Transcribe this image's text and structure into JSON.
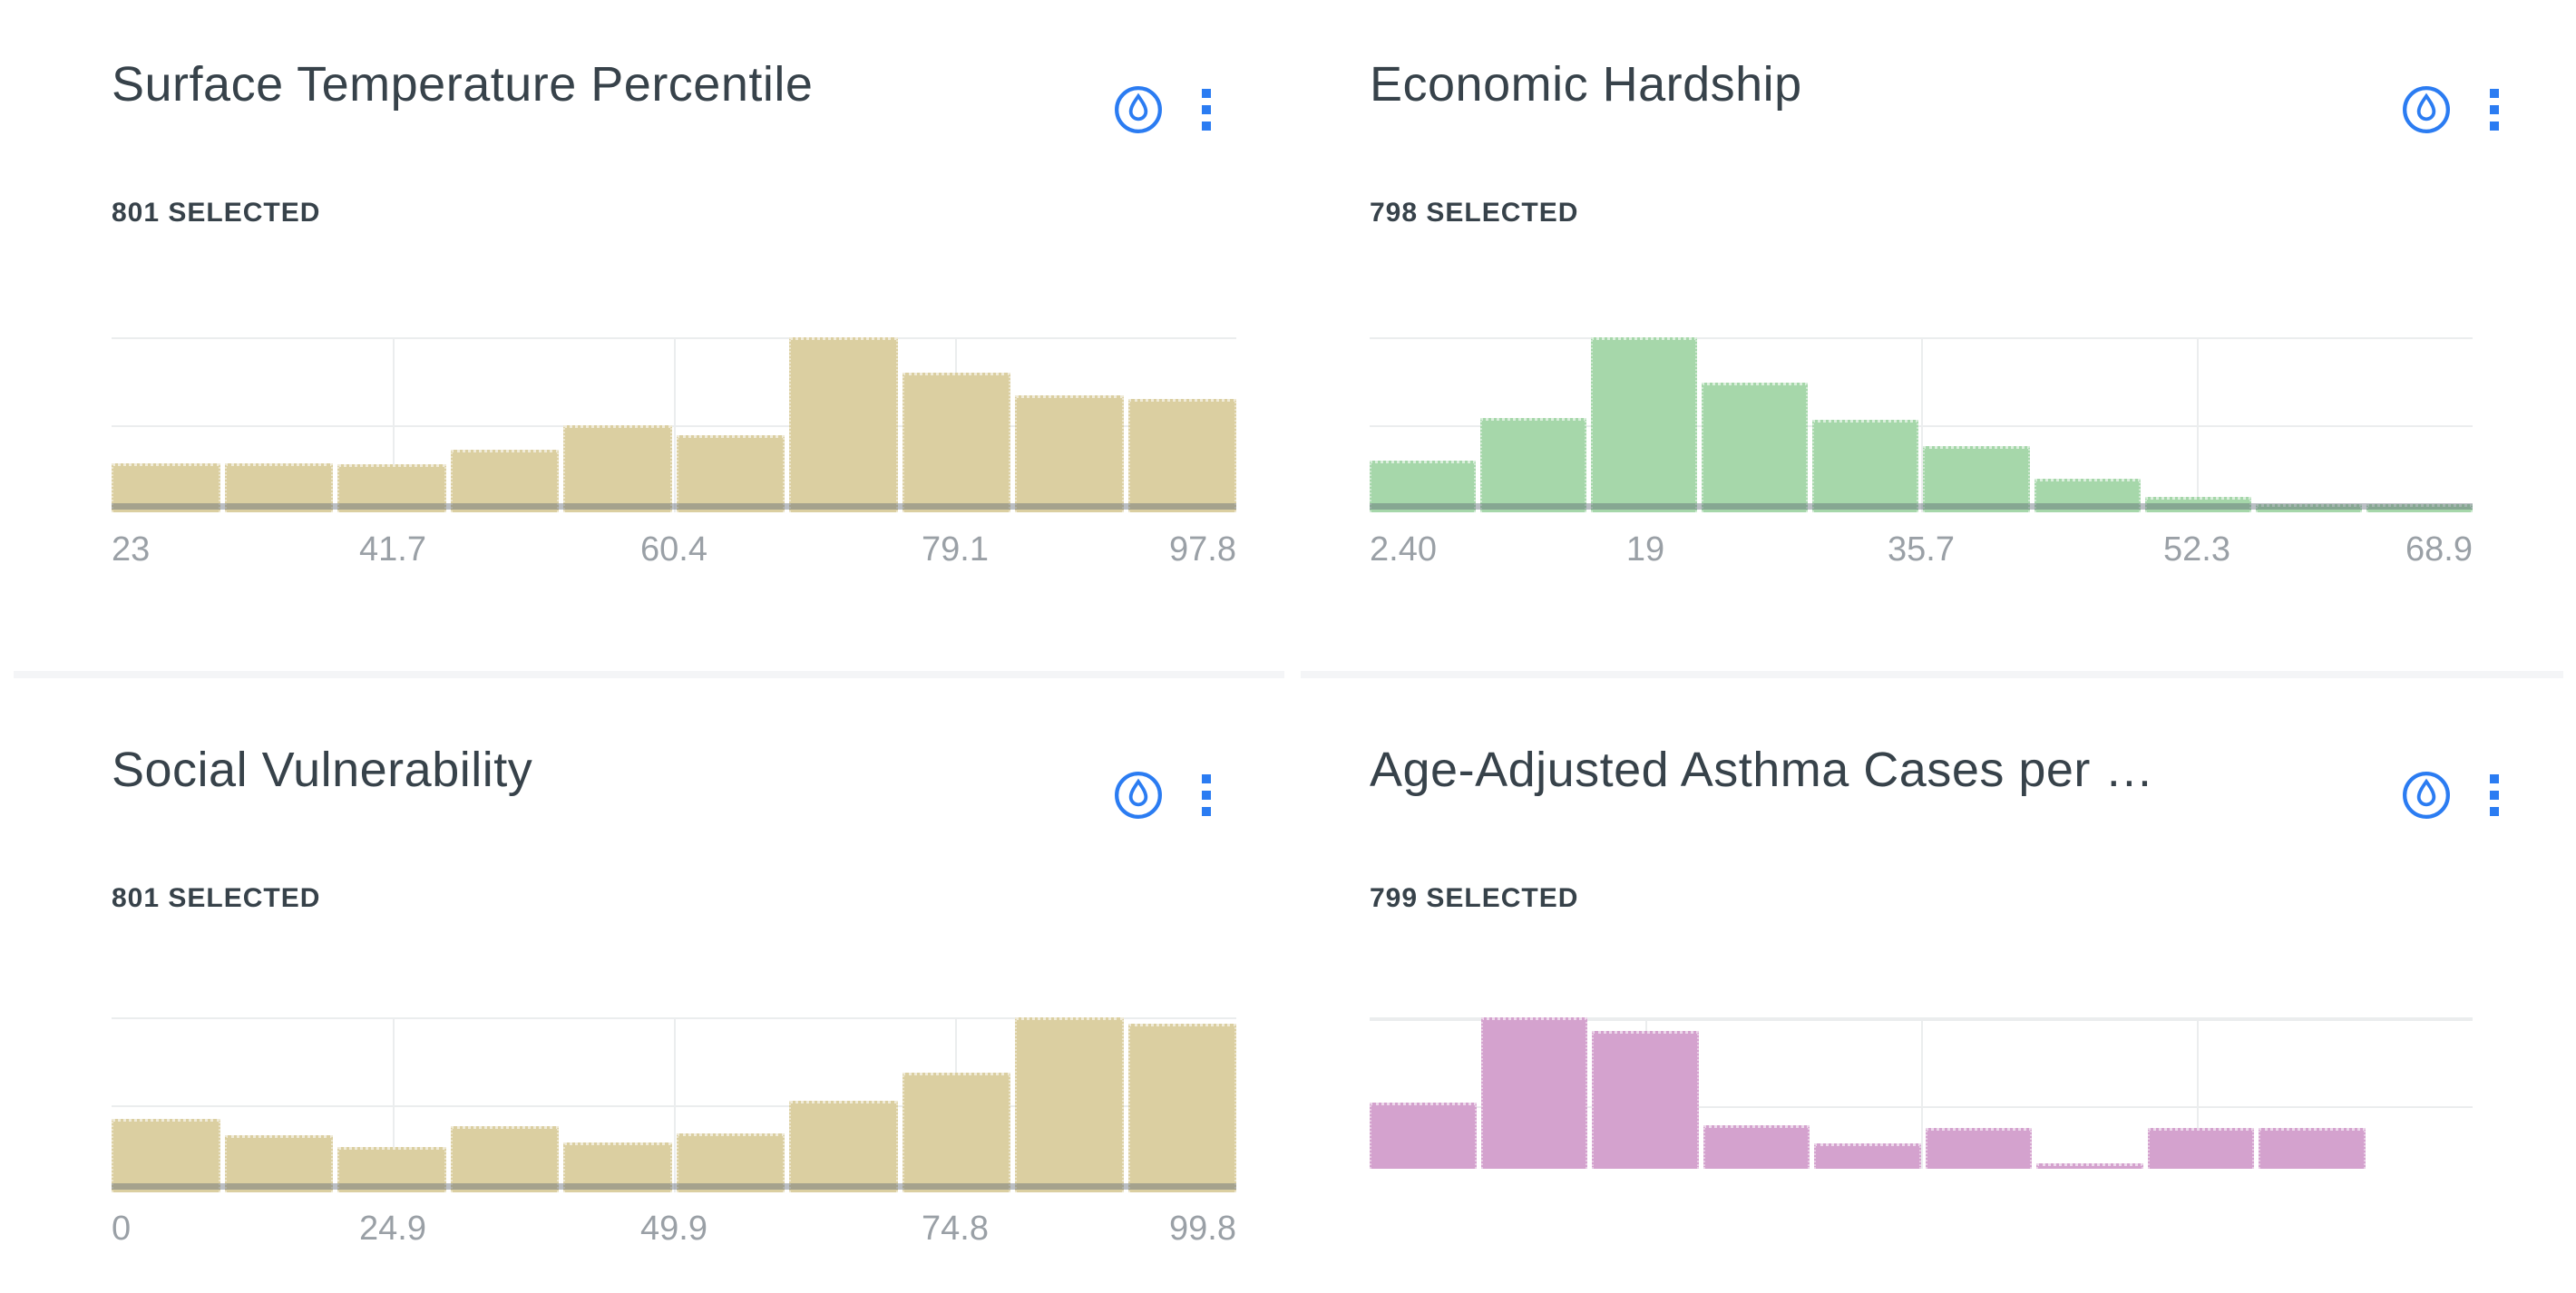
{
  "colors": {
    "background": "#ffffff",
    "accent_blue": "#2b7cf2",
    "title_text": "#37424a",
    "count_text": "#37424a",
    "axis_label_text": "#9aa0a6",
    "gridline": "#ebedee",
    "row_divider": "#f4f5f7",
    "baseline_overlay": "rgba(90,100,115,0.42)",
    "bar_tan": "#dbcfa1",
    "bar_green": "#a6d7aa",
    "bar_pink": "#d4a2ce"
  },
  "icons": {
    "droplet": "droplet-in-circle-outline",
    "kebab": "vertical-ellipsis-square-dots"
  },
  "panels": [
    {
      "id": "p1",
      "title": "Surface Temperature Percentile",
      "selected_text": "801 SELECTED",
      "selected_count": 801
    },
    {
      "id": "p2",
      "title": "Economic Hardship",
      "selected_text": "798 SELECTED",
      "selected_count": 798
    },
    {
      "id": "p3",
      "title": "Social Vulnerability",
      "selected_text": "801 SELECTED",
      "selected_count": 801
    },
    {
      "id": "p4",
      "title": "Age-Adjusted Asthma Cases per …",
      "selected_text": "799 SELECTED",
      "selected_count": 799
    }
  ],
  "chart_data": [
    {
      "type": "bar",
      "subtype": "histogram",
      "title": "Surface Temperature Percentile",
      "bins": 10,
      "x_tick_labels": [
        "23",
        "41.7",
        "60.4",
        "79.1",
        "97.8"
      ],
      "x_range": [
        23,
        97.8
      ],
      "values_pct_of_max": [
        28,
        28,
        27.5,
        36,
        50,
        44,
        100,
        80,
        67,
        65
      ],
      "bar_color": "#dbcfa1",
      "mid_gridline_pct": 50,
      "baseline_visible": true,
      "y_axis": "unlabeled",
      "legend": "none",
      "grid": "horizontal at top and 50%; vertical at 25/50/75%"
    },
    {
      "type": "bar",
      "subtype": "histogram",
      "title": "Economic Hardship",
      "bins": 10,
      "x_tick_labels": [
        "2.40",
        "19",
        "35.7",
        "52.3",
        "68.9"
      ],
      "x_range": [
        2.4,
        68.9
      ],
      "values_pct_of_max": [
        29.5,
        54,
        100,
        74,
        53,
        38,
        19,
        9,
        4.5,
        4.5
      ],
      "bar_color": "#a6d7aa",
      "mid_gridline_pct": 50,
      "baseline_visible": true,
      "y_axis": "unlabeled",
      "legend": "none",
      "grid": "horizontal at top and 50%; vertical at 25/50/75%"
    },
    {
      "type": "bar",
      "subtype": "histogram",
      "title": "Social Vulnerability",
      "bins": 10,
      "x_tick_labels": [
        "0",
        "24.9",
        "49.9",
        "74.8",
        "99.8"
      ],
      "x_range": [
        0,
        99.8
      ],
      "values_pct_of_max": [
        42,
        32.5,
        26,
        38,
        28.5,
        33.5,
        52.5,
        68.5,
        100,
        96.5
      ],
      "bar_color": "#dbcfa1",
      "mid_gridline_pct": 50,
      "baseline_visible": true,
      "y_axis": "unlabeled",
      "legend": "none",
      "grid": "horizontal at top and 50%; vertical at 25/50/75%"
    },
    {
      "type": "bar",
      "subtype": "histogram",
      "title": "Age-Adjusted Asthma Cases per …",
      "bins": 10,
      "x_tick_labels": [],
      "values_pct_of_max": [
        44,
        100,
        91,
        29,
        17,
        27,
        3.5,
        27,
        27,
        0
      ],
      "bar_color": "#d4a2ce",
      "mid_gridline_pct": 58.7,
      "baseline_visible": false,
      "y_axis": "unlabeled",
      "legend": "none",
      "grid": "horizontal at top and 58.7%; vertical at 25/50/75%",
      "note": "x-axis labels not visible (chart cut off at bottom of screenshot)"
    }
  ]
}
